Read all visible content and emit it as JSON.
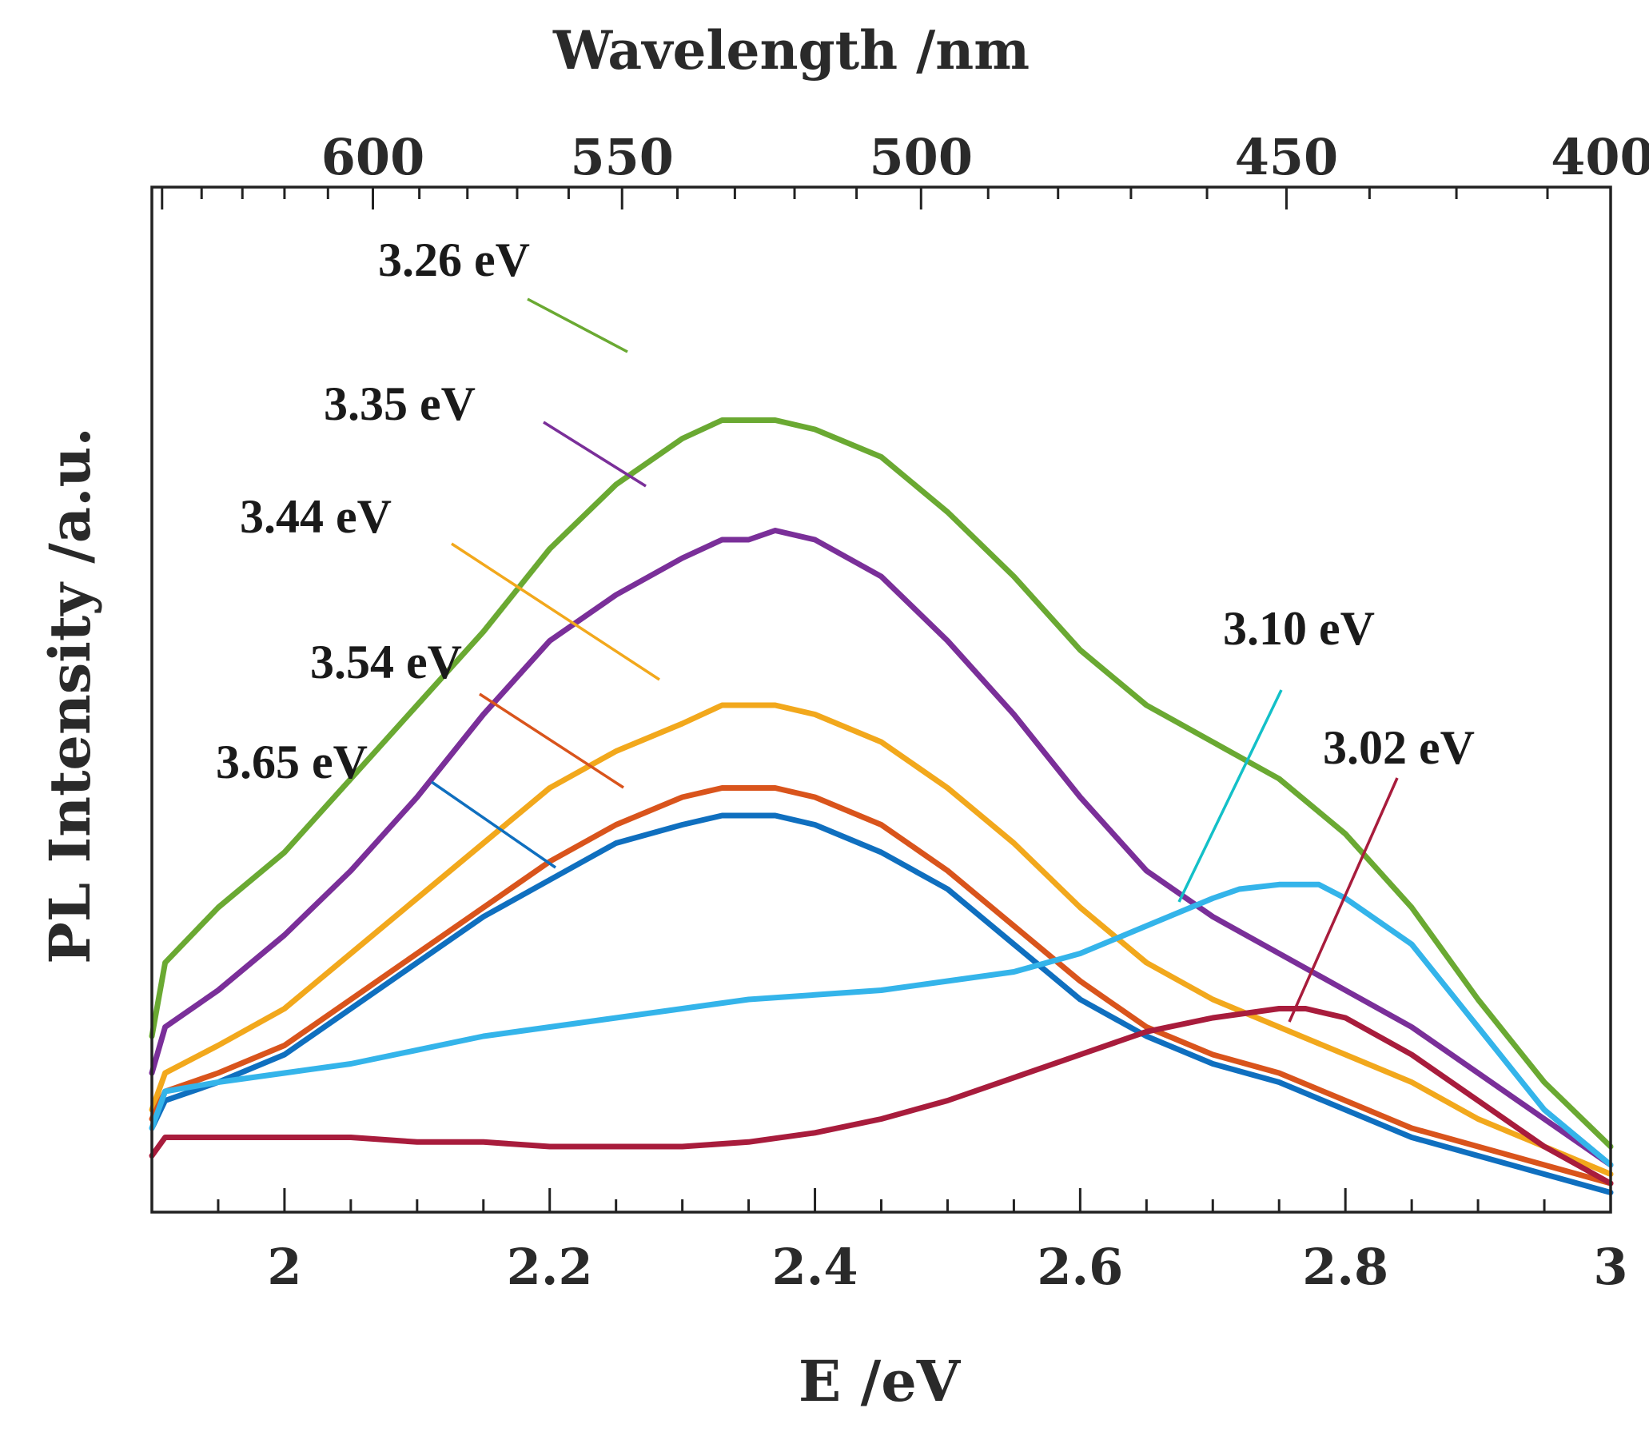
{
  "chart_data": {
    "type": "line",
    "title": "",
    "xlabel": "E /eV",
    "ylabel": "PL Intensity /a.u.",
    "top_axis_label": "Wavelength /nm",
    "xlim": [
      1.9,
      3.0
    ],
    "ylim": [
      0,
      100
    ],
    "y_ticks_shown": false,
    "grid": false,
    "x_ticks": [
      {
        "value": 2.0,
        "label": "2"
      },
      {
        "value": 2.2,
        "label": "2.2"
      },
      {
        "value": 2.4,
        "label": "2.4"
      },
      {
        "value": 2.6,
        "label": "2.6"
      },
      {
        "value": 2.8,
        "label": "2.8"
      },
      {
        "value": 3.0,
        "label": "3"
      }
    ],
    "top_ticks": [
      {
        "nm": 600,
        "label": "600"
      },
      {
        "nm": 550,
        "label": "550"
      },
      {
        "nm": 500,
        "label": "500"
      },
      {
        "nm": 450,
        "label": "450"
      },
      {
        "nm": 400,
        "label": "400"
      }
    ],
    "series": [
      {
        "name": "3.26 eV",
        "color": "#6aa932",
        "x": [
          1.9,
          1.91,
          1.95,
          2.0,
          2.05,
          2.1,
          2.15,
          2.2,
          2.25,
          2.3,
          2.33,
          2.35,
          2.37,
          2.4,
          2.45,
          2.5,
          2.55,
          2.6,
          2.65,
          2.7,
          2.75,
          2.8,
          2.85,
          2.9,
          2.95,
          3.0
        ],
        "values": [
          16,
          24,
          30,
          36,
          44,
          52,
          60,
          69,
          76,
          81,
          83,
          83,
          83,
          82,
          79,
          73,
          66,
          58,
          52,
          48,
          44,
          38,
          30,
          20,
          11,
          4
        ]
      },
      {
        "name": "3.35 eV",
        "color": "#7a2f99",
        "x": [
          1.9,
          1.91,
          1.95,
          2.0,
          2.05,
          2.1,
          2.15,
          2.2,
          2.25,
          2.3,
          2.33,
          2.35,
          2.37,
          2.4,
          2.45,
          2.5,
          2.55,
          2.6,
          2.65,
          2.7,
          2.75,
          2.8,
          2.85,
          2.9,
          2.95,
          3.0
        ],
        "values": [
          12,
          17,
          21,
          27,
          34,
          42,
          51,
          59,
          64,
          68,
          70,
          70,
          71,
          70,
          66,
          59,
          51,
          42,
          34,
          29,
          25,
          21,
          17,
          12,
          7,
          2
        ]
      },
      {
        "name": "3.44 eV",
        "color": "#f2a81c",
        "x": [
          1.9,
          1.91,
          1.95,
          2.0,
          2.05,
          2.1,
          2.15,
          2.2,
          2.25,
          2.3,
          2.33,
          2.35,
          2.37,
          2.4,
          2.45,
          2.5,
          2.55,
          2.6,
          2.65,
          2.7,
          2.75,
          2.8,
          2.85,
          2.9,
          2.95,
          3.0
        ],
        "values": [
          8,
          12,
          15,
          19,
          25,
          31,
          37,
          43,
          47,
          50,
          52,
          52,
          52,
          51,
          48,
          43,
          37,
          30,
          24,
          20,
          17,
          14,
          11,
          7,
          4,
          1
        ]
      },
      {
        "name": "3.54 eV",
        "color": "#d9541c",
        "x": [
          1.9,
          1.91,
          1.95,
          2.0,
          2.05,
          2.1,
          2.15,
          2.2,
          2.25,
          2.3,
          2.33,
          2.35,
          2.37,
          2.4,
          2.45,
          2.5,
          2.55,
          2.6,
          2.65,
          2.7,
          2.75,
          2.8,
          2.85,
          2.9,
          2.95,
          3.0
        ],
        "values": [
          7,
          10,
          12,
          15,
          20,
          25,
          30,
          35,
          39,
          42,
          43,
          43,
          43,
          42,
          39,
          34,
          28,
          22,
          17,
          14,
          12,
          9,
          6,
          4,
          2,
          0
        ]
      },
      {
        "name": "3.65 eV",
        "color": "#0f6fbf",
        "x": [
          1.9,
          1.91,
          1.95,
          2.0,
          2.05,
          2.1,
          2.15,
          2.2,
          2.25,
          2.3,
          2.33,
          2.35,
          2.37,
          2.4,
          2.45,
          2.5,
          2.55,
          2.6,
          2.65,
          2.7,
          2.75,
          2.8,
          2.85,
          2.9,
          2.95,
          3.0
        ],
        "values": [
          6,
          9,
          11,
          14,
          19,
          24,
          29,
          33,
          37,
          39,
          40,
          40,
          40,
          39,
          36,
          32,
          26,
          20,
          16,
          13,
          11,
          8,
          5,
          3,
          1,
          -1
        ]
      },
      {
        "name": "3.10 eV",
        "color": "#34b4ea",
        "x": [
          1.9,
          1.91,
          1.95,
          2.0,
          2.05,
          2.1,
          2.15,
          2.2,
          2.25,
          2.3,
          2.35,
          2.4,
          2.45,
          2.5,
          2.55,
          2.6,
          2.65,
          2.7,
          2.72,
          2.75,
          2.78,
          2.8,
          2.85,
          2.9,
          2.95,
          3.0
        ],
        "values": [
          6,
          10,
          11,
          12,
          13,
          14.5,
          16,
          17,
          18,
          19,
          20,
          20.5,
          21,
          22,
          23,
          25,
          28,
          31,
          32,
          32.5,
          32.5,
          31,
          26,
          17,
          8,
          2
        ]
      },
      {
        "name": "3.02 eV",
        "color": "#a81c3c",
        "x": [
          1.9,
          1.91,
          1.95,
          2.0,
          2.05,
          2.1,
          2.15,
          2.2,
          2.25,
          2.3,
          2.35,
          2.4,
          2.45,
          2.5,
          2.55,
          2.6,
          2.65,
          2.7,
          2.75,
          2.77,
          2.8,
          2.85,
          2.9,
          2.95,
          3.0
        ],
        "values": [
          3,
          5,
          5,
          5,
          5,
          4.5,
          4.5,
          4,
          4,
          4,
          4.5,
          5.5,
          7,
          9,
          11.5,
          14,
          16.5,
          18,
          19,
          19,
          18,
          14,
          9,
          4,
          0
        ]
      }
    ],
    "annotations": [
      {
        "text": "3.26 eV",
        "series": "3.26 eV"
      },
      {
        "text": "3.35 eV",
        "series": "3.35 eV"
      },
      {
        "text": "3.44 eV",
        "series": "3.44 eV"
      },
      {
        "text": "3.54 eV",
        "series": "3.54 eV"
      },
      {
        "text": "3.65 eV",
        "series": "3.65 eV"
      },
      {
        "text": "3.10 eV",
        "series": "3.10 eV",
        "line_color": "#13c0c8"
      },
      {
        "text": "3.02 eV",
        "series": "3.02 eV"
      }
    ]
  }
}
